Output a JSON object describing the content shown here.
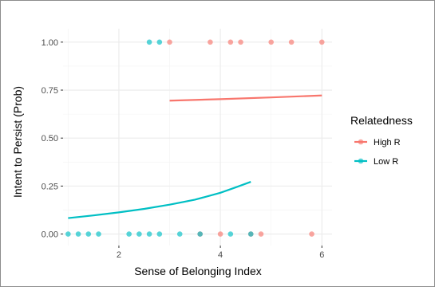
{
  "chart_data": {
    "type": "scatter",
    "title": "",
    "xlabel": "Sense of Belonging Index",
    "ylabel": "Intent to Persist (Prob)",
    "xlim": [
      0.9,
      6.2
    ],
    "ylim": [
      -0.06,
      1.07
    ],
    "x_ticks": [
      2,
      4,
      6
    ],
    "x_tick_labels": [
      "2",
      "4",
      "6"
    ],
    "y_ticks": [
      0,
      0.25,
      0.5,
      0.75,
      1.0
    ],
    "y_tick_labels": [
      "0.00",
      "0.25",
      "0.50",
      "0.75",
      "1.00"
    ],
    "grid": true,
    "legend": {
      "title": "Relatedness",
      "position": "right",
      "entries": [
        "High R",
        "Low R"
      ]
    },
    "series": [
      {
        "name": "High R",
        "color": "#F8766D",
        "points": [
          {
            "x": 3.0,
            "y": 1
          },
          {
            "x": 3.8,
            "y": 1
          },
          {
            "x": 4.2,
            "y": 1
          },
          {
            "x": 4.4,
            "y": 1
          },
          {
            "x": 5.0,
            "y": 1
          },
          {
            "x": 5.4,
            "y": 1
          },
          {
            "x": 6.0,
            "y": 1
          },
          {
            "x": 3.6,
            "y": 0
          },
          {
            "x": 4.0,
            "y": 0
          },
          {
            "x": 4.6,
            "y": 0
          },
          {
            "x": 4.8,
            "y": 0
          },
          {
            "x": 5.8,
            "y": 0
          }
        ],
        "fit": [
          {
            "x": 3.0,
            "y": 0.695
          },
          {
            "x": 4.0,
            "y": 0.703
          },
          {
            "x": 5.0,
            "y": 0.712
          },
          {
            "x": 6.0,
            "y": 0.722
          }
        ]
      },
      {
        "name": "Low R",
        "color": "#00BFC4",
        "points": [
          {
            "x": 2.6,
            "y": 1
          },
          {
            "x": 2.8,
            "y": 1
          },
          {
            "x": 1.0,
            "y": 0
          },
          {
            "x": 1.2,
            "y": 0
          },
          {
            "x": 1.4,
            "y": 0
          },
          {
            "x": 1.6,
            "y": 0
          },
          {
            "x": 2.2,
            "y": 0
          },
          {
            "x": 2.4,
            "y": 0
          },
          {
            "x": 2.6,
            "y": 0
          },
          {
            "x": 2.8,
            "y": 0
          },
          {
            "x": 3.2,
            "y": 0
          },
          {
            "x": 3.6,
            "y": 0
          },
          {
            "x": 4.2,
            "y": 0
          },
          {
            "x": 4.6,
            "y": 0
          }
        ],
        "fit": [
          {
            "x": 1.0,
            "y": 0.083
          },
          {
            "x": 1.5,
            "y": 0.097
          },
          {
            "x": 2.0,
            "y": 0.113
          },
          {
            "x": 2.5,
            "y": 0.131
          },
          {
            "x": 3.0,
            "y": 0.153
          },
          {
            "x": 3.5,
            "y": 0.179
          },
          {
            "x": 4.0,
            "y": 0.215
          },
          {
            "x": 4.3,
            "y": 0.243
          },
          {
            "x": 4.6,
            "y": 0.272
          }
        ]
      }
    ]
  }
}
